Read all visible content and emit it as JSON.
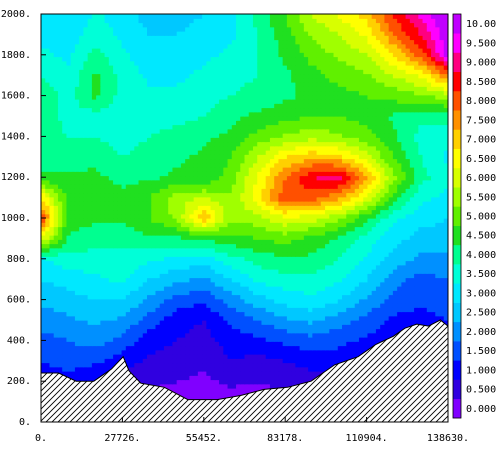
{
  "chart_data": {
    "type": "heatmap",
    "subtype": "filled-contour",
    "title": "",
    "xlabel": "",
    "ylabel": "",
    "xlim": [
      0,
      138630
    ],
    "ylim": [
      0,
      2000
    ],
    "x_ticks": [
      "0.",
      "27726.",
      "55452.",
      "83178.",
      "110904.",
      "138630."
    ],
    "x_tick_values": [
      0,
      27726,
      55452,
      83178,
      110904,
      138630
    ],
    "y_ticks": [
      "0.",
      "200.",
      "400.",
      "600.",
      "800.",
      "1000.",
      "1200.",
      "1400.",
      "1600.",
      "1800.",
      "2000."
    ],
    "y_tick_values": [
      0,
      200,
      400,
      600,
      800,
      1000,
      1200,
      1400,
      1600,
      1800,
      2000
    ],
    "colorbar": {
      "levels": [
        "0.000",
        "0.500",
        "1.000",
        "1.500",
        "2.000",
        "2.500",
        "3.000",
        "3.500",
        "4.000",
        "4.500",
        "5.000",
        "5.500",
        "6.000",
        "6.500",
        "7.000",
        "7.500",
        "8.000",
        "8.500",
        "9.000",
        "9.500",
        "10.00"
      ],
      "level_values": [
        0,
        0.5,
        1,
        1.5,
        2,
        2.5,
        3,
        3.5,
        4,
        4.5,
        5,
        5.5,
        6,
        6.5,
        7,
        7.5,
        8,
        8.5,
        9,
        9.5,
        10
      ],
      "colors": [
        "#8000ff",
        "#3000e0",
        "#0000ff",
        "#0050ff",
        "#0090ff",
        "#00c8ff",
        "#00e8ff",
        "#00ffd8",
        "#00ff90",
        "#20e020",
        "#60f000",
        "#a0ff00",
        "#d8ff00",
        "#ffff00",
        "#ffd000",
        "#ff9000",
        "#ff5000",
        "#ff0000",
        "#ff0080",
        "#ff00ff",
        "#c000ff"
      ]
    },
    "terrain_profile": {
      "x": [
        0,
        6000,
        12000,
        18000,
        24000,
        28000,
        30000,
        34000,
        42000,
        50000,
        60000,
        68000,
        76000,
        84000,
        92000,
        100000,
        108000,
        114000,
        120000,
        124000,
        128000,
        132000,
        136000,
        138630
      ],
      "y": [
        240,
        240,
        200,
        200,
        260,
        320,
        250,
        190,
        170,
        110,
        110,
        130,
        160,
        170,
        200,
        280,
        320,
        380,
        420,
        460,
        480,
        470,
        500,
        470
      ]
    },
    "field": {
      "x": [
        0,
        9242,
        18484,
        27726,
        36968,
        46210,
        55452,
        64694,
        73936,
        83178,
        92420,
        101662,
        110904,
        120146,
        129388,
        138630
      ],
      "y": [
        0,
        100,
        200,
        300,
        400,
        500,
        600,
        700,
        800,
        900,
        1000,
        1100,
        1200,
        1300,
        1400,
        1500,
        1600,
        1700,
        1800,
        1900,
        2000
      ],
      "values": [
        [
          0.5,
          0.5,
          0.5,
          0.5,
          0.5,
          0.5,
          0.5,
          0.5,
          0.5,
          0.5,
          0.5,
          0.5,
          0.5,
          0.5,
          0.5,
          0.5
        ],
        [
          0.8,
          0.7,
          0.6,
          0.5,
          0.4,
          0.2,
          0.1,
          0.2,
          0.3,
          0.4,
          0.5,
          0.6,
          0.6,
          0.6,
          0.6,
          0.6
        ],
        [
          1.0,
          1.2,
          1.0,
          0.8,
          0.6,
          0.5,
          0.4,
          0.6,
          0.5,
          0.6,
          0.8,
          0.9,
          0.9,
          0.8,
          0.7,
          0.7
        ],
        [
          1.5,
          1.8,
          1.6,
          1.2,
          0.9,
          0.8,
          0.6,
          1.0,
          0.8,
          1.0,
          1.2,
          1.3,
          1.1,
          1.0,
          0.9,
          0.9
        ],
        [
          1.8,
          2.0,
          2.2,
          1.8,
          1.2,
          1.0,
          0.8,
          1.2,
          1.4,
          1.6,
          1.8,
          1.6,
          1.4,
          1.2,
          1.1,
          1.2
        ],
        [
          2.2,
          2.4,
          2.6,
          2.4,
          1.8,
          1.2,
          1.0,
          1.6,
          2.0,
          2.4,
          2.6,
          2.2,
          1.8,
          1.4,
          1.3,
          1.5
        ],
        [
          2.6,
          2.8,
          3.0,
          3.0,
          2.4,
          1.8,
          1.6,
          2.2,
          2.8,
          3.2,
          3.4,
          3.0,
          2.4,
          1.8,
          1.6,
          1.8
        ],
        [
          3.0,
          3.2,
          3.4,
          3.6,
          3.0,
          2.6,
          2.4,
          3.0,
          3.6,
          3.8,
          3.8,
          3.6,
          3.0,
          2.2,
          1.8,
          2.0
        ],
        [
          3.4,
          3.8,
          3.8,
          3.8,
          3.6,
          3.4,
          3.2,
          3.8,
          4.2,
          4.4,
          4.4,
          4.0,
          3.4,
          2.8,
          2.4,
          2.4
        ],
        [
          6.5,
          4.4,
          4.2,
          4.2,
          4.4,
          4.4,
          4.6,
          4.8,
          5.0,
          5.2,
          4.8,
          4.4,
          3.8,
          3.2,
          2.8,
          2.8
        ],
        [
          8.5,
          4.8,
          4.6,
          4.6,
          5.0,
          5.6,
          7.5,
          5.6,
          5.8,
          6.4,
          6.2,
          5.6,
          4.6,
          3.6,
          3.2,
          3.0
        ],
        [
          7.0,
          4.8,
          4.8,
          4.6,
          5.0,
          5.8,
          6.0,
          5.6,
          6.8,
          8.4,
          8.2,
          7.6,
          6.4,
          4.8,
          3.6,
          3.4
        ],
        [
          4.6,
          4.6,
          4.6,
          4.4,
          4.4,
          4.6,
          4.6,
          5.2,
          6.6,
          8.0,
          9.0,
          9.2,
          7.6,
          5.6,
          4.2,
          3.6
        ],
        [
          4.2,
          4.2,
          4.4,
          4.0,
          4.2,
          4.4,
          4.6,
          5.0,
          6.0,
          7.0,
          7.4,
          7.2,
          6.2,
          5.0,
          4.0,
          3.4
        ],
        [
          4.2,
          4.0,
          4.0,
          3.8,
          4.0,
          4.2,
          4.4,
          4.6,
          5.2,
          5.6,
          5.8,
          5.6,
          5.2,
          4.6,
          3.8,
          3.6
        ],
        [
          4.4,
          3.8,
          3.8,
          3.6,
          3.8,
          3.8,
          4.0,
          4.4,
          4.6,
          4.8,
          5.0,
          5.0,
          4.8,
          4.4,
          4.2,
          4.2
        ],
        [
          4.4,
          3.8,
          4.6,
          3.8,
          3.6,
          3.6,
          3.8,
          4.0,
          4.2,
          4.4,
          4.6,
          4.8,
          5.0,
          5.2,
          5.4,
          5.8
        ],
        [
          4.0,
          3.6,
          4.6,
          3.8,
          3.4,
          3.4,
          3.6,
          3.8,
          4.0,
          4.4,
          4.8,
          5.2,
          5.4,
          6.0,
          6.6,
          8.0
        ],
        [
          3.6,
          3.4,
          4.2,
          3.6,
          3.2,
          3.2,
          3.4,
          3.6,
          4.0,
          4.6,
          5.2,
          5.6,
          6.0,
          7.0,
          8.2,
          10.2
        ],
        [
          3.4,
          3.2,
          3.8,
          3.4,
          3.0,
          3.0,
          3.2,
          3.4,
          4.0,
          4.8,
          5.6,
          6.0,
          6.6,
          8.0,
          9.0,
          10.4
        ],
        [
          3.2,
          3.0,
          3.6,
          3.2,
          2.8,
          2.8,
          3.0,
          3.4,
          4.2,
          5.0,
          6.0,
          6.6,
          7.2,
          8.6,
          9.6,
          10.6
        ]
      ]
    },
    "legend_position": "right",
    "grid": false
  }
}
